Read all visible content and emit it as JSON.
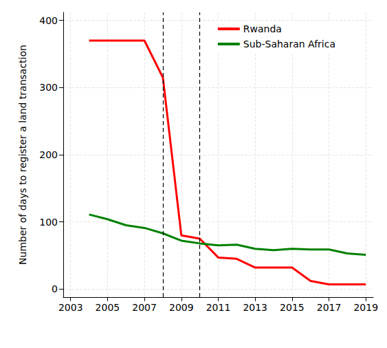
{
  "chart_data": {
    "type": "line",
    "y_label": "Number of days to register a land transaction",
    "x": [
      2004,
      2005,
      2006,
      2007,
      2008,
      2009,
      2010,
      2011,
      2012,
      2013,
      2014,
      2015,
      2016,
      2017,
      2018,
      2019
    ],
    "series": [
      {
        "name": "Rwanda",
        "color": "#ff0000",
        "values": [
          370,
          370,
          370,
          370,
          315,
          80,
          75,
          47,
          45,
          32,
          32,
          32,
          12,
          7,
          7,
          7
        ]
      },
      {
        "name": "Sub-Saharan Africa",
        "color": "#008000",
        "values": [
          111,
          104,
          95,
          91,
          83,
          72,
          68,
          65,
          66,
          60,
          58,
          60,
          59,
          59,
          53,
          51
        ]
      }
    ],
    "vertical_lines": [
      2008,
      2010
    ],
    "xlim": [
      2002.6,
      2019.4
    ],
    "xticks": [
      2003,
      2005,
      2007,
      2009,
      2011,
      2013,
      2015,
      2017,
      2019
    ],
    "ylim": [
      -12,
      412
    ],
    "yticks": [
      0,
      100,
      200,
      300,
      400
    ],
    "grid": true,
    "legend": "upper right"
  }
}
